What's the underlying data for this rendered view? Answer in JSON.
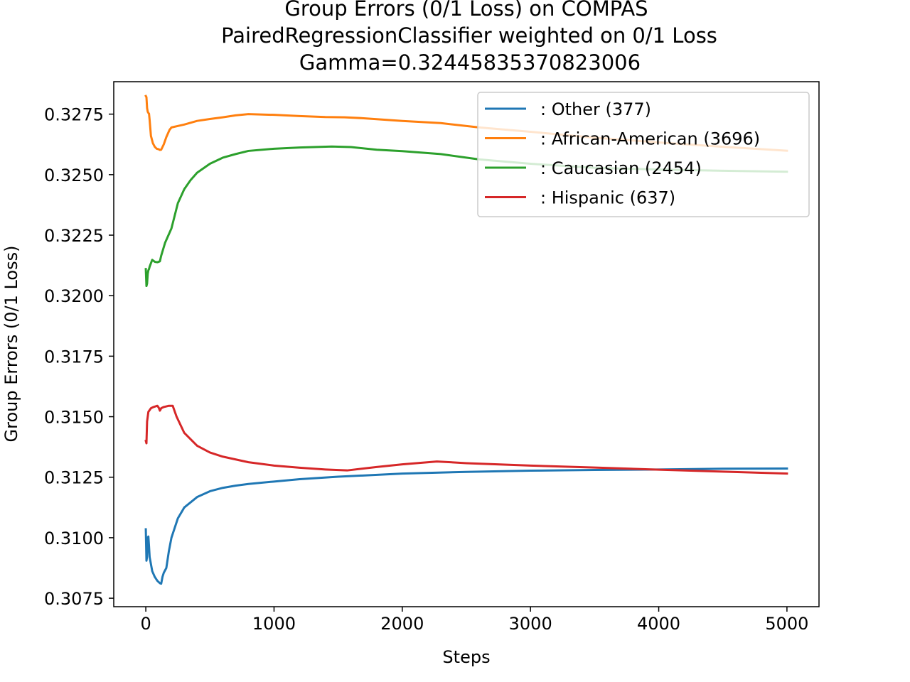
{
  "chart_data": {
    "type": "line",
    "title_lines": [
      "Group Errors (0/1 Loss) on COMPAS",
      "PairedRegressionClassifier weighted on 0/1 Loss",
      "Gamma=0.32445835370823006"
    ],
    "xlabel": "Steps",
    "ylabel": "Group Errors (0/1 Loss)",
    "xlim": [
      -250,
      5250
    ],
    "ylim": [
      0.30715,
      0.32884
    ],
    "x_ticks": [
      0,
      1000,
      2000,
      3000,
      4000,
      5000
    ],
    "x_tick_labels": [
      "0",
      "1000",
      "2000",
      "3000",
      "4000",
      "5000"
    ],
    "y_ticks": [
      0.3075,
      0.31,
      0.3125,
      0.315,
      0.3175,
      0.32,
      0.3225,
      0.325,
      0.3275
    ],
    "y_tick_labels": [
      "0.3075",
      "0.3100",
      "0.3125",
      "0.3150",
      "0.3175",
      "0.3200",
      "0.3225",
      "0.3250",
      "0.3275"
    ],
    "legend_position": "top-right",
    "grid": false,
    "series": [
      {
        "name": ": Other  (377)",
        "color": "#1f77b4",
        "points": [
          [
            0,
            0.31035
          ],
          [
            5,
            0.30905
          ],
          [
            10,
            0.30922
          ],
          [
            15,
            0.31
          ],
          [
            20,
            0.31005
          ],
          [
            25,
            0.30965
          ],
          [
            30,
            0.3092
          ],
          [
            50,
            0.30862
          ],
          [
            70,
            0.30838
          ],
          [
            90,
            0.30822
          ],
          [
            110,
            0.30812
          ],
          [
            120,
            0.3081
          ],
          [
            130,
            0.30838
          ],
          [
            140,
            0.30855
          ],
          [
            160,
            0.30875
          ],
          [
            180,
            0.30945
          ],
          [
            200,
            0.31
          ],
          [
            250,
            0.3108
          ],
          [
            300,
            0.31125
          ],
          [
            400,
            0.31168
          ],
          [
            500,
            0.31192
          ],
          [
            600,
            0.31206
          ],
          [
            700,
            0.31215
          ],
          [
            800,
            0.31222
          ],
          [
            1000,
            0.31232
          ],
          [
            1200,
            0.31242
          ],
          [
            1500,
            0.31252
          ],
          [
            2000,
            0.31265
          ],
          [
            2500,
            0.31272
          ],
          [
            3000,
            0.31277
          ],
          [
            3500,
            0.3128
          ],
          [
            4000,
            0.31282
          ],
          [
            4500,
            0.31285
          ],
          [
            5000,
            0.31286
          ]
        ]
      },
      {
        "name": ": African-American  (3696)",
        "color": "#ff7f0e",
        "points": [
          [
            0,
            0.32825
          ],
          [
            5,
            0.3282
          ],
          [
            10,
            0.32775
          ],
          [
            15,
            0.3276
          ],
          [
            20,
            0.32755
          ],
          [
            25,
            0.32752
          ],
          [
            30,
            0.32725
          ],
          [
            40,
            0.3266
          ],
          [
            55,
            0.3263
          ],
          [
            70,
            0.32615
          ],
          [
            85,
            0.32607
          ],
          [
            100,
            0.32605
          ],
          [
            110,
            0.32602
          ],
          [
            120,
            0.32603
          ],
          [
            140,
            0.32625
          ],
          [
            160,
            0.32655
          ],
          [
            185,
            0.32685
          ],
          [
            200,
            0.32695
          ],
          [
            300,
            0.32707
          ],
          [
            400,
            0.32722
          ],
          [
            500,
            0.3273
          ],
          [
            600,
            0.32737
          ],
          [
            700,
            0.32745
          ],
          [
            800,
            0.3275
          ],
          [
            1000,
            0.32747
          ],
          [
            1200,
            0.32742
          ],
          [
            1400,
            0.32738
          ],
          [
            1550,
            0.32737
          ],
          [
            1700,
            0.32733
          ],
          [
            2000,
            0.32722
          ],
          [
            2300,
            0.32713
          ],
          [
            2600,
            0.32695
          ],
          [
            3000,
            0.32677
          ],
          [
            3500,
            0.32653
          ],
          [
            4000,
            0.32633
          ],
          [
            4500,
            0.32615
          ],
          [
            5000,
            0.32599
          ]
        ]
      },
      {
        "name": ": Caucasian  (2454)",
        "color": "#2ca02c",
        "points": [
          [
            0,
            0.3211
          ],
          [
            5,
            0.3204
          ],
          [
            10,
            0.3205
          ],
          [
            15,
            0.3209
          ],
          [
            20,
            0.32105
          ],
          [
            25,
            0.3211
          ],
          [
            30,
            0.3212
          ],
          [
            50,
            0.32148
          ],
          [
            70,
            0.3214
          ],
          [
            90,
            0.32138
          ],
          [
            110,
            0.32142
          ],
          [
            120,
            0.32165
          ],
          [
            150,
            0.32218
          ],
          [
            200,
            0.32278
          ],
          [
            250,
            0.32382
          ],
          [
            300,
            0.3244
          ],
          [
            350,
            0.32478
          ],
          [
            400,
            0.32508
          ],
          [
            500,
            0.32545
          ],
          [
            600,
            0.3257
          ],
          [
            700,
            0.32585
          ],
          [
            800,
            0.32598
          ],
          [
            1000,
            0.32607
          ],
          [
            1200,
            0.32612
          ],
          [
            1450,
            0.32616
          ],
          [
            1600,
            0.32614
          ],
          [
            1800,
            0.32603
          ],
          [
            2000,
            0.32597
          ],
          [
            2300,
            0.32585
          ],
          [
            2600,
            0.32563
          ],
          [
            3000,
            0.32545
          ],
          [
            3500,
            0.32528
          ],
          [
            4000,
            0.32521
          ],
          [
            4500,
            0.32516
          ],
          [
            5000,
            0.32512
          ]
        ]
      },
      {
        "name": ": Hispanic  (637)",
        "color": "#d62728",
        "points": [
          [
            0,
            0.314
          ],
          [
            5,
            0.3139
          ],
          [
            10,
            0.3148
          ],
          [
            20,
            0.3152
          ],
          [
            40,
            0.31535
          ],
          [
            60,
            0.3154
          ],
          [
            90,
            0.31545
          ],
          [
            100,
            0.31538
          ],
          [
            110,
            0.31525
          ],
          [
            120,
            0.31535
          ],
          [
            140,
            0.3154
          ],
          [
            180,
            0.31545
          ],
          [
            210,
            0.31545
          ],
          [
            240,
            0.315
          ],
          [
            300,
            0.31433
          ],
          [
            400,
            0.3138
          ],
          [
            500,
            0.31352
          ],
          [
            600,
            0.31335
          ],
          [
            800,
            0.31312
          ],
          [
            1000,
            0.31298
          ],
          [
            1200,
            0.31289
          ],
          [
            1400,
            0.31282
          ],
          [
            1570,
            0.31278
          ],
          [
            1800,
            0.31292
          ],
          [
            2000,
            0.31303
          ],
          [
            2270,
            0.31315
          ],
          [
            2500,
            0.31308
          ],
          [
            3000,
            0.31298
          ],
          [
            3500,
            0.3129
          ],
          [
            4000,
            0.31281
          ],
          [
            4500,
            0.31273
          ],
          [
            5000,
            0.31265
          ]
        ]
      }
    ]
  }
}
